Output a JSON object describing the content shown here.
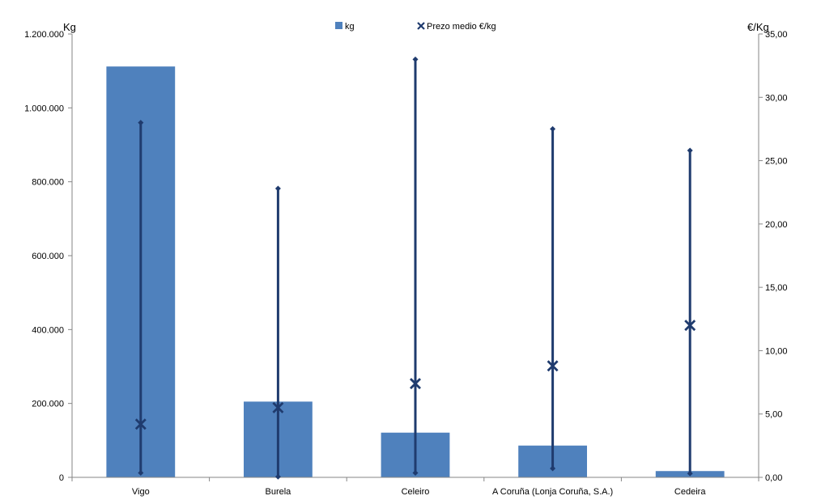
{
  "chart_data": {
    "type": "bar",
    "categories": [
      "Vigo",
      "Burela",
      "Celeiro",
      "A Coruña (Lonja Coruña, S.A.)",
      "Cedeira"
    ],
    "series": [
      {
        "name": "kg",
        "type": "bar",
        "axis": "left",
        "values": [
          1112000,
          205000,
          121000,
          86000,
          17000
        ]
      },
      {
        "name": "Prezo medio €/kg",
        "type": "scatter",
        "axis": "right",
        "values": [
          4.2,
          5.5,
          7.4,
          8.8,
          12.0
        ],
        "min": [
          0.35,
          0.05,
          0.35,
          0.7,
          0.3
        ],
        "max": [
          28.0,
          22.8,
          33.0,
          27.5,
          25.8
        ]
      }
    ],
    "ylabel": "Kg",
    "y2label": "€/Kg",
    "ylim": [
      0,
      1200000
    ],
    "y2lim": [
      0,
      35
    ],
    "yticks": [
      "0",
      "200.000",
      "400.000",
      "600.000",
      "800.000",
      "1.000.000",
      "1.200.000"
    ],
    "y2ticks": [
      "0,00",
      "5,00",
      "10,00",
      "15,00",
      "20,00",
      "25,00",
      "30,00",
      "35,00"
    ],
    "legend_position": "top-center",
    "grid": false,
    "colors": {
      "bar": "#4F81BD",
      "marker": "#1F3B6E",
      "axis": "#868686"
    }
  }
}
